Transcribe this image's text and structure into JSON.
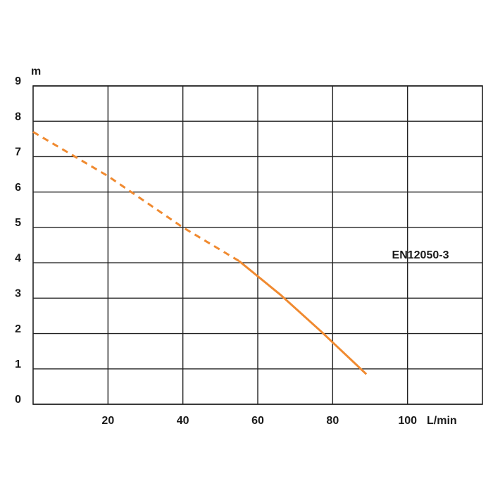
{
  "chart_data": {
    "type": "line",
    "x_label": "L/min",
    "y_label": "m",
    "annotation": "EN12050-3",
    "xlim": [
      0,
      120
    ],
    "ylim": [
      0,
      9
    ],
    "xticks": [
      20,
      40,
      60,
      80,
      100
    ],
    "yticks": [
      0,
      1,
      2,
      3,
      4,
      5,
      6,
      7,
      8,
      9
    ],
    "grid": true,
    "series": [
      {
        "color": "#f08a30",
        "dashed": true,
        "x": [
          0,
          20,
          40,
          55
        ],
        "values": [
          7.7,
          6.45,
          5.0,
          4.05
        ]
      },
      {
        "color": "#f08a30",
        "dashed": false,
        "x": [
          55,
          66,
          77,
          89
        ],
        "values": [
          4.05,
          3.1,
          2.05,
          0.85
        ]
      }
    ]
  }
}
